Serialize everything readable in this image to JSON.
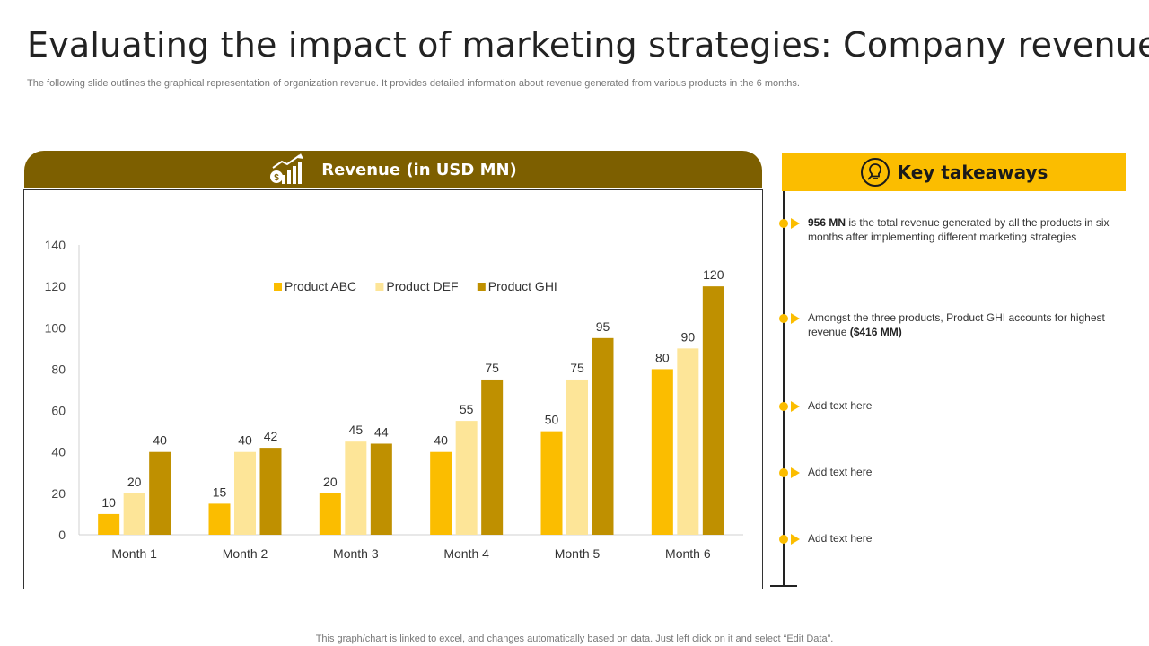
{
  "page": {
    "title": "Evaluating the impact of marketing strategies: Company revenue",
    "subtitle": "The following slide outlines the graphical representation of organization revenue. It provides detailed information about revenue generated from various products in the 6 months.",
    "footer": "This graph/chart is linked to excel,  and changes automatically based on data. Just left click on it and select “Edit Data”."
  },
  "chart_panel": {
    "header": "Revenue (in USD MN)",
    "icon": "revenue-growth-icon"
  },
  "chart_data": {
    "type": "bar",
    "title": "Revenue (in USD MN)",
    "xlabel": "",
    "ylabel": "",
    "categories": [
      "Month 1",
      "Month 2",
      "Month 3",
      "Month 4",
      "Month 5",
      "Month 6"
    ],
    "series": [
      {
        "name": "Product ABC",
        "values": [
          10,
          15,
          20,
          40,
          50,
          80
        ],
        "color": "#fbbd00"
      },
      {
        "name": "Product DEF",
        "values": [
          20,
          40,
          45,
          55,
          75,
          90
        ],
        "color": "#fde598"
      },
      {
        "name": "Product GHI",
        "values": [
          40,
          42,
          44,
          75,
          95,
          120
        ],
        "color": "#bf9000"
      }
    ],
    "ylim": [
      0,
      140
    ],
    "yticks": [
      0,
      20,
      40,
      60,
      80,
      100,
      120,
      140
    ],
    "grid": false,
    "legend_position": "top-center"
  },
  "takeaways": {
    "header": "Key takeaways",
    "icon": "lightbulb-icon",
    "accent_color": "#fbbd00",
    "items": [
      {
        "bold": "956 MN",
        "text": " is the total revenue  generated  by all the products in six months after implementing different  marketing strategies",
        "bold_after": ""
      },
      {
        "bold": "",
        "text": "Amongst the three products, Product GHI accounts for highest revenue  ",
        "bold_after": "($416 MM)"
      },
      {
        "bold": "",
        "text": "Add text here",
        "bold_after": ""
      },
      {
        "bold": "",
        "text": "Add text here",
        "bold_after": ""
      },
      {
        "bold": "",
        "text": "Add text here",
        "bold_after": ""
      }
    ]
  }
}
